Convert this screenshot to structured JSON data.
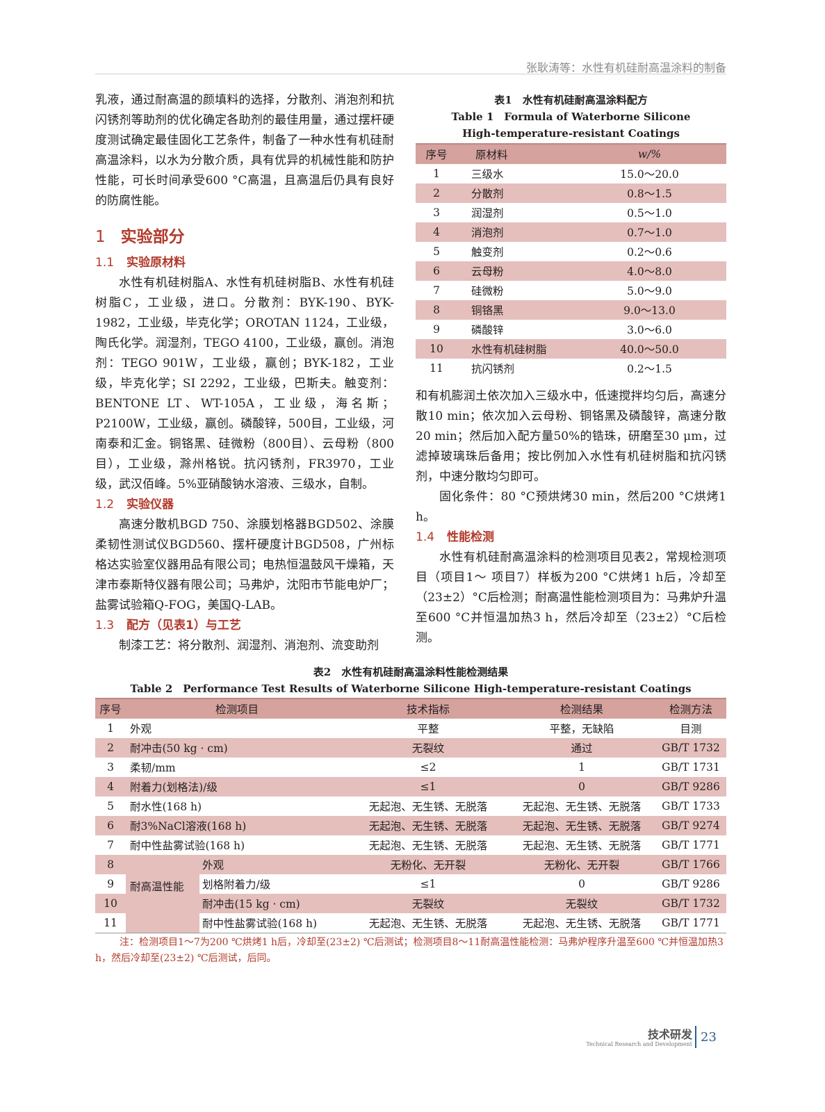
{
  "header": {
    "running_title": "张耿涛等：水性有机硅耐高温涂料的制备"
  },
  "left": {
    "p1": "乳液，通过耐高温的颜填料的选择，分散剂、消泡剂和抗闪锈剂等助剂的优化确定各助剂的最佳用量，通过摆杆硬度测试确定最佳固化工艺条件，制备了一种水性有机硅耐高温涂料，以水为分散介质，具有优异的机械性能和防护性能，可长时间承受600 °C高温，且高温后仍具有良好的防腐性能。",
    "s1_num": "1",
    "s1_title": "实验部分",
    "s11_num": "1.1",
    "s11_title": "实验原材料",
    "p11": "水性有机硅树脂A、水性有机硅树脂B、水性有机硅树脂C，工业级，进口。分散剂：BYK-190、BYK-1982，工业级，毕克化学；OROTAN 1124，工业级，陶氏化学。润湿剂，TEGO 4100，工业级，赢创。消泡剂：TEGO 901W，工业级，赢创；BYK-182，工业级，毕克化学；SI 2292，工业级，巴斯夫。触变剂：BENTONE LT、WT-105A，工业级，海名斯；P2100W，工业级，赢创。磷酸锌，500目，工业级，河南泰和汇金。铜铬黑、硅微粉（800目）、云母粉（800目），工业级，滁州格锐。抗闪锈剂，FR3970，工业级，武汉佰峰。5%亚硝酸钠水溶液、三级水，自制。",
    "s12_num": "1.2",
    "s12_title": "实验仪器",
    "p12": "高速分散机BGD 750、涂膜划格器BGD502、涂膜柔韧性测试仪BGD560、摆杆硬度计BGD508，广州标格达实验室仪器用品有限公司；电热恒温鼓风干燥箱，天津市泰斯特仪器有限公司；马弗炉，沈阳市节能电炉厂；盐雾试验箱Q-FOG，美国Q-LAB。",
    "s13_num": "1.3",
    "s13_title": "配方（见表1）与工艺",
    "p13": "制漆工艺：将分散剂、润湿剂、消泡剂、流变助剂"
  },
  "table1": {
    "caption_cn": "表1　水性有机硅耐高温涂料配方",
    "caption_en": "Table 1　Formula of Waterborne Silicone High-temperature-resistant Coatings",
    "headers": [
      "序号",
      "原材料",
      "w/%"
    ],
    "rows": [
      [
        "1",
        "三级水",
        "15.0～20.0"
      ],
      [
        "2",
        "分散剂",
        "0.8～1.5"
      ],
      [
        "3",
        "润湿剂",
        "0.5～1.0"
      ],
      [
        "4",
        "消泡剂",
        "0.7～1.0"
      ],
      [
        "5",
        "触变剂",
        "0.2～0.6"
      ],
      [
        "6",
        "云母粉",
        "4.0～8.0"
      ],
      [
        "7",
        "硅微粉",
        "5.0～9.0"
      ],
      [
        "8",
        "铜铬黑",
        "9.0～13.0"
      ],
      [
        "9",
        "磷酸锌",
        "3.0～6.0"
      ],
      [
        "10",
        "水性有机硅树脂",
        "40.0～50.0"
      ],
      [
        "11",
        "抗闪锈剂",
        "0.2～1.5"
      ]
    ]
  },
  "right": {
    "p1": "和有机膨润土依次加入三级水中，低速搅拌均匀后，高速分散10 min；依次加入云母粉、铜铬黑及磷酸锌，高速分散20 min；然后加入配方量50%的锆珠，研磨至30 μm，过滤掉玻璃珠后备用；按比例加入水性有机硅树脂和抗闪锈剂，中速分散均匀即可。",
    "p2": "固化条件：80 °C预烘烤30 min，然后200 °C烘烤1 h。",
    "s14_num": "1.4",
    "s14_title": "性能检测",
    "p3": "水性有机硅耐高温涂料的检测项目见表2，常规检测项目（项目1～ 项目7）样板为200 °C烘烤1 h后，冷却至（23±2）°C后检测；耐高温性能检测项目为：马弗炉升温至600 °C并恒温加热3 h，然后冷却至（23±2）°C后检测。"
  },
  "table2": {
    "caption_cn": "表2　水性有机硅耐高温涂料性能检测结果",
    "caption_en": "Table 2　Performance Test Results of Waterborne Silicone High-temperature-resistant Coatings",
    "headers": [
      "序号",
      "检测项目",
      "技术指标",
      "检测结果",
      "检测方法"
    ],
    "rows": [
      [
        "1",
        "外观",
        "平整",
        "平整，无缺陷",
        "目测"
      ],
      [
        "2",
        "耐冲击(50 kg · cm)",
        "无裂纹",
        "通过",
        "GB/T 1732"
      ],
      [
        "3",
        "柔韧/mm",
        "≤2",
        "1",
        "GB/T 1731"
      ],
      [
        "4",
        "附着力(划格法)/级",
        "≤1",
        "0",
        "GB/T 9286"
      ],
      [
        "5",
        "耐水性(168 h)",
        "无起泡、无生锈、无脱落",
        "无起泡、无生锈、无脱落",
        "GB/T 1733"
      ],
      [
        "6",
        "耐3%NaCl溶液(168 h)",
        "无起泡、无生锈、无脱落",
        "无起泡、无生锈、无脱落",
        "GB/T 9274"
      ],
      [
        "7",
        "耐中性盐雾试验(168 h)",
        "无起泡、无生锈、无脱落",
        "无起泡、无生锈、无脱落",
        "GB/T 1771"
      ]
    ],
    "group_label": "耐高温性能",
    "group_rows": [
      [
        "8",
        "外观",
        "无粉化、无开裂",
        "无粉化、无开裂",
        "GB/T 1766"
      ],
      [
        "9",
        "划格附着力/级",
        "≤1",
        "0",
        "GB/T 9286"
      ],
      [
        "10",
        "耐冲击(15 kg · cm)",
        "无裂纹",
        "无裂纹",
        "GB/T 1732"
      ],
      [
        "11",
        "耐中性盐雾试验(168 h)",
        "无起泡、无生锈、无脱落",
        "无起泡、无生锈、无脱落",
        "GB/T 1771"
      ]
    ],
    "note": "注：检测项目1～7为200 ℃烘烤1 h后，冷却至(23±2) ℃后测试；检测项目8～11耐高温性能检测：马弗炉程序升温至600 ℃并恒温加热3 h，然后冷却至(23±2) ℃后测试，后同。"
  },
  "footer": {
    "section_cn": "技术研发",
    "section_en": "Technical Research and Development",
    "page_number": "23"
  },
  "colors": {
    "accent": "#b23a2b",
    "table_header": "#d5a29e",
    "table_stripe": "#e4bfbc",
    "page_number": "#2a5d8f"
  }
}
